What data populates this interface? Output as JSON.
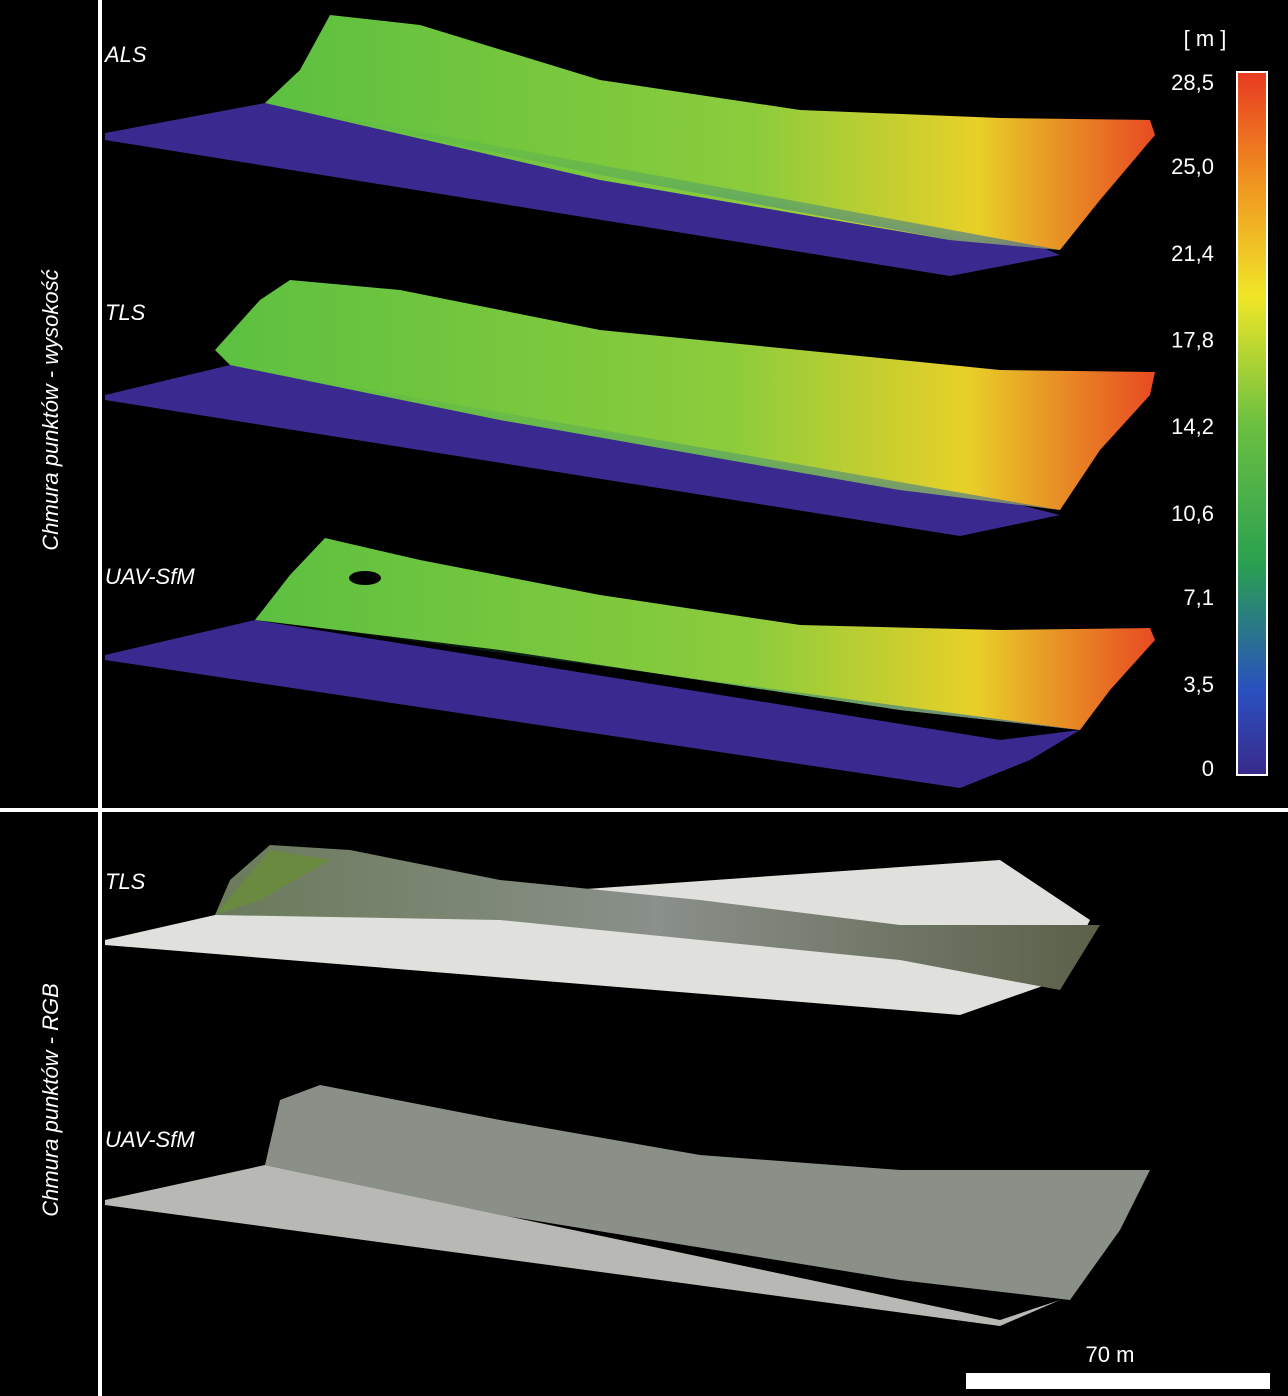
{
  "panels": [
    {
      "label": "Chmura punktów - wysokość",
      "clouds": [
        "ALS",
        "TLS",
        "UAV-SfM"
      ]
    },
    {
      "label": "Chmura punktów - RGB",
      "clouds": [
        "TLS",
        "UAV-SfM"
      ]
    }
  ],
  "colorbar": {
    "unit": "[ m ]",
    "ticks": [
      0,
      {
        "value": 3.5,
        "label": "3,5"
      },
      {
        "value": 7.1,
        "label": "7,1"
      },
      {
        "value": 10.6,
        "label": "10,6"
      },
      {
        "value": 14.2,
        "label": "14,2"
      },
      {
        "value": 17.8,
        "label": "17,8"
      },
      {
        "value": 21.4,
        "label": "21,4"
      },
      {
        "value": 25.0,
        "label": "25,0"
      },
      {
        "value": 28.5,
        "label": "28,5"
      }
    ]
  },
  "scale_bar": {
    "label": "70 m"
  }
}
